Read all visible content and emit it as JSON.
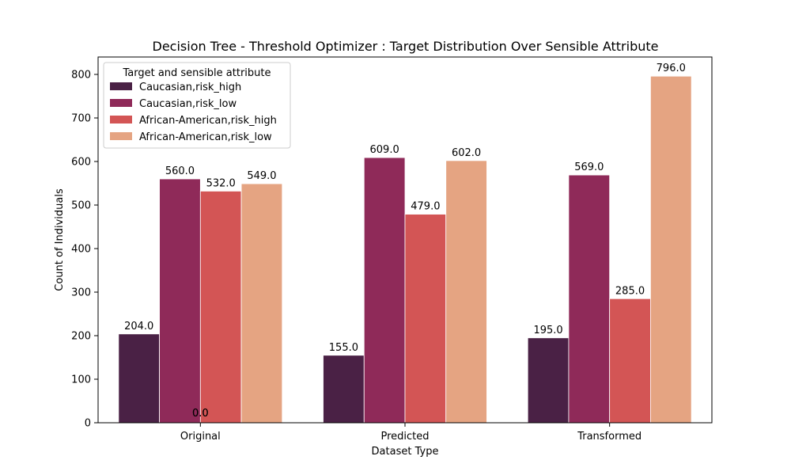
{
  "chart_data": {
    "type": "bar",
    "title": "Decision Tree - Threshold Optimizer : Target Distribution Over Sensible Attribute",
    "xlabel": "Dataset Type",
    "ylabel": "Count of Individuals",
    "categories": [
      "Original",
      "Predicted",
      "Transformed"
    ],
    "ylim": [
      0,
      840
    ],
    "yticks": [
      0,
      100,
      200,
      300,
      400,
      500,
      600,
      700,
      800
    ],
    "grid": false,
    "legend": {
      "title": "Target and sensible attribute",
      "placement": "top-left"
    },
    "series": [
      {
        "name": "Caucasian,risk_high",
        "color": "#4a2145",
        "values": [
          204.0,
          155.0,
          195.0
        ]
      },
      {
        "name": "Caucasian,risk_low",
        "color": "#8f2a59",
        "values": [
          560.0,
          609.0,
          569.0
        ]
      },
      {
        "name": "African-American,risk_high",
        "color": "#d35555",
        "values": [
          532.0,
          479.0,
          285.0
        ]
      },
      {
        "name": "African-American,risk_low",
        "color": "#e5a482",
        "values": [
          549.0,
          602.0,
          796.0
        ]
      }
    ],
    "extra_labels": [
      "0.0",
      "0.0"
    ]
  }
}
